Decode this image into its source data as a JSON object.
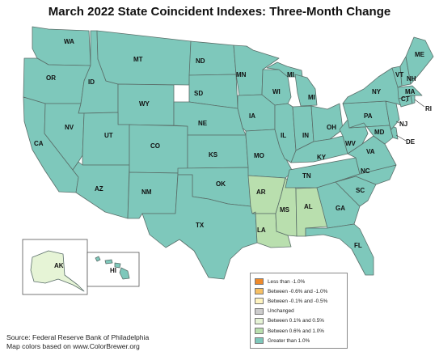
{
  "title": "March 2022 State Coincident Indexes: Three-Month Change",
  "colors": {
    "greater_than_1": "#7ec8bb",
    "between_0_6_and_1": "#b9dfae",
    "between_0_1_and_0_5": "#e6f4d6",
    "unchanged": "#cccccc",
    "between_neg_0_1_and_neg_0_5": "#fff4c0",
    "between_neg_0_6_and_neg_1": "#f7c064",
    "less_than_neg_1": "#ef8a2a",
    "border": "#5a6e69"
  },
  "states": {
    "WA": "WA",
    "OR": "OR",
    "CA": "CA",
    "ID": "ID",
    "NV": "NV",
    "MT": "MT",
    "WY": "WY",
    "UT": "UT",
    "AZ": "AZ",
    "CO": "CO",
    "NM": "NM",
    "ND": "ND",
    "SD": "SD",
    "NE": "NE",
    "KS": "KS",
    "OK": "OK",
    "TX": "TX",
    "MN": "MN",
    "IA": "IA",
    "MO": "MO",
    "AR": "AR",
    "LA": "LA",
    "WI": "WI",
    "IL": "IL",
    "MS": "MS",
    "MI_UP": "MI",
    "MI": "MI",
    "IN": "IN",
    "KY": "KY",
    "TN": "TN",
    "AL": "AL",
    "OH": "OH",
    "WV": "WV",
    "GA": "GA",
    "FL": "FL",
    "SC": "SC",
    "NC": "NC",
    "VA": "VA",
    "PA": "PA",
    "MD": "MD",
    "DE": "DE",
    "NJ": "NJ",
    "NY": "NY",
    "CT": "CT",
    "RI": "RI",
    "MA": "MA",
    "VT": "VT",
    "NH": "NH",
    "ME": "ME",
    "AK": "AK",
    "HI": "HI"
  },
  "legend": [
    {
      "label": "Less than -1.0%",
      "color": "#ef8a2a"
    },
    {
      "label": "Between -0.6% and -1.0%",
      "color": "#f7c064"
    },
    {
      "label": "Between -0.1% and -0.5%",
      "color": "#fff4c0"
    },
    {
      "label": "Unchanged",
      "color": "#cccccc"
    },
    {
      "label": "Between 0.1% and 0.5%",
      "color": "#e6f4d6"
    },
    {
      "label": "Between 0.6% and 1.0%",
      "color": "#b9dfae"
    },
    {
      "label": "Greater than 1.0%",
      "color": "#7ec8bb"
    }
  ],
  "source_lines": [
    "Source: Federal Reserve Bank of Philadelphia",
    "Map colors based on www.ColorBrewer.org"
  ]
}
